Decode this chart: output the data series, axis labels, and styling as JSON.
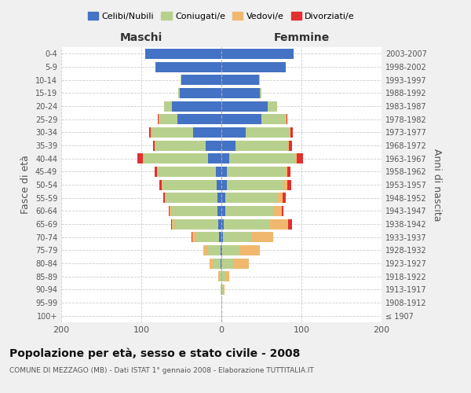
{
  "age_groups": [
    "100+",
    "95-99",
    "90-94",
    "85-89",
    "80-84",
    "75-79",
    "70-74",
    "65-69",
    "60-64",
    "55-59",
    "50-54",
    "45-49",
    "40-44",
    "35-39",
    "30-34",
    "25-29",
    "20-24",
    "15-19",
    "10-14",
    "5-9",
    "0-4"
  ],
  "birth_years": [
    "≤ 1907",
    "1908-1912",
    "1913-1917",
    "1918-1922",
    "1923-1927",
    "1928-1932",
    "1933-1937",
    "1938-1942",
    "1943-1947",
    "1948-1952",
    "1953-1957",
    "1958-1962",
    "1963-1967",
    "1968-1972",
    "1973-1977",
    "1978-1982",
    "1983-1987",
    "1988-1992",
    "1993-1997",
    "1998-2002",
    "2003-2007"
  ],
  "males": {
    "celibi": [
      0,
      0,
      0,
      0,
      1,
      1,
      3,
      4,
      5,
      5,
      6,
      7,
      17,
      20,
      35,
      55,
      62,
      52,
      50,
      82,
      95
    ],
    "coniugati": [
      0,
      0,
      1,
      3,
      10,
      16,
      28,
      55,
      58,
      65,
      68,
      72,
      80,
      62,
      52,
      22,
      10,
      2,
      1,
      0,
      0
    ],
    "vedovi": [
      0,
      0,
      0,
      1,
      4,
      6,
      5,
      3,
      2,
      1,
      1,
      1,
      1,
      1,
      1,
      1,
      0,
      0,
      0,
      0,
      0
    ],
    "divorziati": [
      0,
      0,
      0,
      0,
      0,
      0,
      1,
      1,
      1,
      2,
      2,
      3,
      7,
      2,
      2,
      1,
      0,
      0,
      0,
      0,
      0
    ]
  },
  "females": {
    "nubili": [
      0,
      0,
      0,
      0,
      0,
      1,
      2,
      3,
      5,
      5,
      7,
      7,
      10,
      18,
      30,
      50,
      58,
      48,
      47,
      80,
      90
    ],
    "coniugate": [
      0,
      0,
      2,
      5,
      16,
      22,
      35,
      58,
      60,
      65,
      70,
      72,
      82,
      65,
      55,
      30,
      12,
      2,
      1,
      0,
      0
    ],
    "vedove": [
      0,
      1,
      2,
      5,
      18,
      25,
      28,
      22,
      10,
      6,
      5,
      3,
      2,
      1,
      1,
      1,
      0,
      0,
      0,
      0,
      0
    ],
    "divorziate": [
      0,
      0,
      0,
      0,
      0,
      0,
      0,
      5,
      2,
      4,
      5,
      4,
      8,
      4,
      3,
      1,
      0,
      0,
      0,
      0,
      0
    ]
  },
  "colors": {
    "celibi": "#4472c4",
    "coniugati": "#b8d08d",
    "vedovi": "#f0b86e",
    "divorziati": "#e03030"
  },
  "xlim": 200,
  "title": "Popolazione per età, sesso e stato civile - 2008",
  "subtitle": "COMUNE DI MEZZAGO (MB) - Dati ISTAT 1° gennaio 2008 - Elaborazione TUTTITALIA.IT",
  "xlabel_left": "Maschi",
  "xlabel_right": "Femmine",
  "ylabel_left": "Fasce di età",
  "ylabel_right": "Anni di nascita",
  "legend_labels": [
    "Celibi/Nubili",
    "Coniugati/e",
    "Vedovi/e",
    "Divorziati/e"
  ],
  "bg_color": "#f0f0f0",
  "plot_bg_color": "#ffffff"
}
